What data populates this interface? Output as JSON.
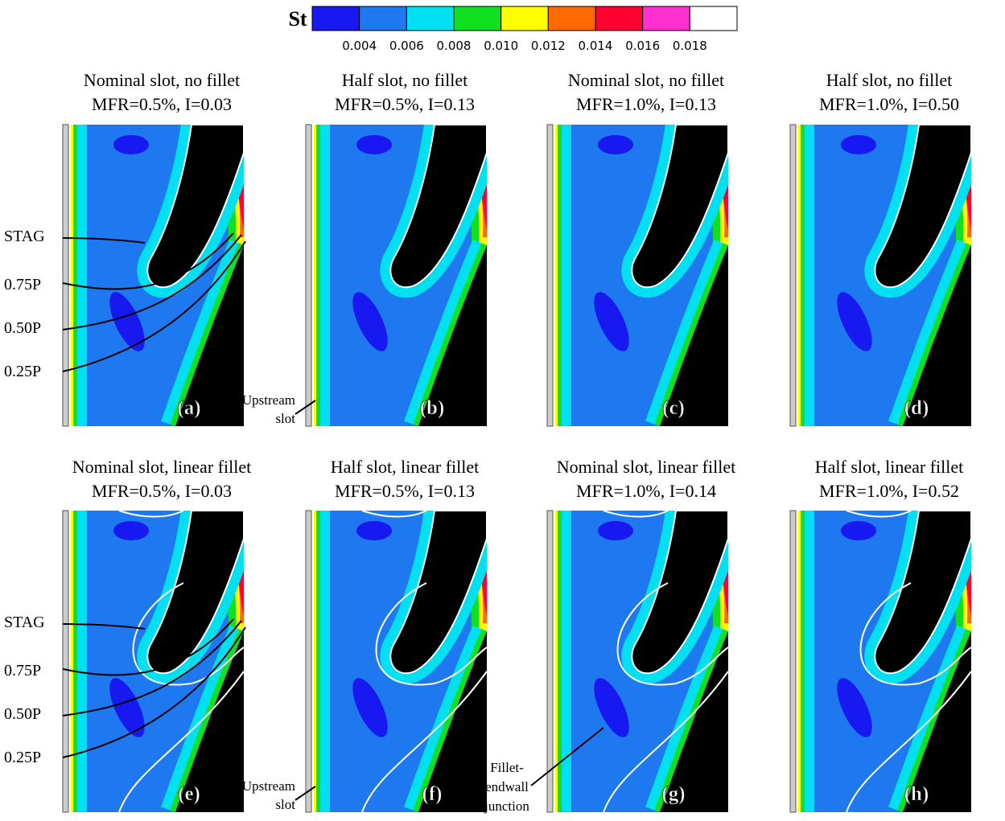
{
  "legend": {
    "label": "St",
    "colors": [
      "#1818f0",
      "#1e78f0",
      "#00e0f0",
      "#10e020",
      "#ffff00",
      "#ff6a00",
      "#ff0030",
      "#ff30d0",
      "#ffffff"
    ],
    "ticks": [
      "0.004",
      "0.006",
      "0.008",
      "0.010",
      "0.012",
      "0.014",
      "0.016",
      "0.018"
    ]
  },
  "panels": [
    {
      "title": [
        "Nominal slot, no fillet",
        "MFR=0.5%, I=0.03"
      ],
      "letter": "(a)"
    },
    {
      "title": [
        "Half slot, no fillet",
        "MFR=0.5%, I=0.13"
      ],
      "letter": "(b)"
    },
    {
      "title": [
        "Nominal slot, no fillet",
        "MFR=1.0%, I=0.13"
      ],
      "letter": "(c)"
    },
    {
      "title": [
        "Half slot, no fillet",
        "MFR=1.0%, I=0.50"
      ],
      "letter": "(d)"
    },
    {
      "title": [
        "Nominal slot, linear fillet",
        "MFR=0.5%, I=0.03"
      ],
      "letter": "(e)"
    },
    {
      "title": [
        "Half slot, linear fillet",
        "MFR=0.5%, I=0.13"
      ],
      "letter": "(f)"
    },
    {
      "title": [
        "Nominal slot, linear fillet",
        "MFR=1.0%, I=0.14"
      ],
      "letter": "(g)"
    },
    {
      "title": [
        "Half slot, linear fillet",
        "MFR=1.0%, I=0.52"
      ],
      "letter": "(h)"
    }
  ],
  "annotations": {
    "streamlines": [
      "STAG",
      "0.75P",
      "0.50P",
      "0.25P"
    ],
    "upstream_slot": [
      "Upstream",
      "slot"
    ],
    "fillet_junction": [
      "Fillet-",
      "endwall",
      "junction"
    ]
  }
}
